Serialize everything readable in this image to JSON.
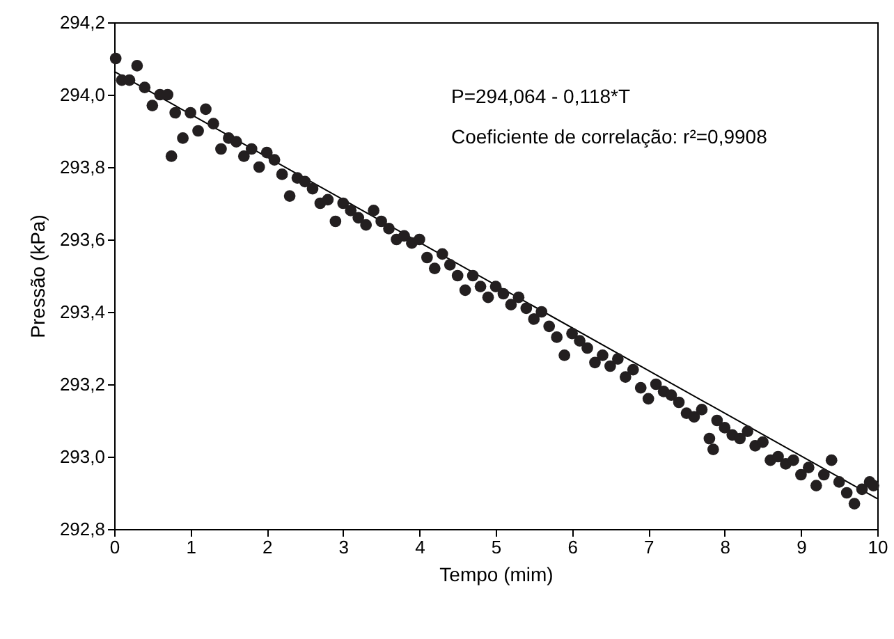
{
  "chart_data": {
    "type": "scatter",
    "xlabel": "Tempo (mim)",
    "ylabel": "Pressão (kPa)",
    "annotations": [
      "P=294,064 - 0,118*T",
      "Coeficiente de correlação: r²=0,9908"
    ],
    "xlim": [
      0,
      10
    ],
    "xticks": [
      0,
      1,
      2,
      3,
      4,
      5,
      6,
      7,
      8,
      9,
      10
    ],
    "ylim": [
      292.8,
      294.2
    ],
    "yticks": [
      {
        "value": 292.8,
        "label": "292,8"
      },
      {
        "value": 293.0,
        "label": "293,0"
      },
      {
        "value": 293.2,
        "label": "293,2"
      },
      {
        "value": 293.4,
        "label": "293,4"
      },
      {
        "value": 293.6,
        "label": "293,6"
      },
      {
        "value": 293.8,
        "label": "293,8"
      },
      {
        "value": 294.0,
        "label": "294,0"
      },
      {
        "value": 294.2,
        "label": "294,2"
      }
    ],
    "grid": false,
    "series": [
      {
        "marker": "circle",
        "color": "#231f20",
        "x": [
          0.02,
          0.1,
          0.2,
          0.3,
          0.4,
          0.5,
          0.6,
          0.7,
          0.75,
          0.8,
          0.9,
          1.0,
          1.1,
          1.2,
          1.3,
          1.4,
          1.5,
          1.6,
          1.7,
          1.8,
          1.9,
          2.0,
          2.1,
          2.2,
          2.3,
          2.4,
          2.5,
          2.6,
          2.7,
          2.8,
          2.9,
          3.0,
          3.1,
          3.2,
          3.3,
          3.4,
          3.5,
          3.6,
          3.7,
          3.8,
          3.9,
          4.0,
          4.1,
          4.2,
          4.3,
          4.4,
          4.5,
          4.6,
          4.7,
          4.8,
          4.9,
          5.0,
          5.1,
          5.2,
          5.3,
          5.4,
          5.5,
          5.6,
          5.7,
          5.8,
          5.9,
          6.0,
          6.1,
          6.2,
          6.3,
          6.4,
          6.5,
          6.6,
          6.7,
          6.8,
          6.9,
          7.0,
          7.1,
          7.2,
          7.3,
          7.4,
          7.5,
          7.6,
          7.7,
          7.8,
          7.85,
          7.9,
          8.0,
          8.1,
          8.2,
          8.3,
          8.4,
          8.5,
          8.6,
          8.7,
          8.8,
          8.9,
          9.0,
          9.1,
          9.2,
          9.3,
          9.4,
          9.5,
          9.6,
          9.7,
          9.8,
          9.9,
          9.95
        ],
        "values": [
          294.1,
          294.04,
          294.04,
          294.08,
          294.02,
          293.97,
          294.0,
          294.0,
          293.83,
          293.95,
          293.88,
          293.95,
          293.9,
          293.96,
          293.92,
          293.85,
          293.88,
          293.87,
          293.83,
          293.85,
          293.8,
          293.84,
          293.82,
          293.78,
          293.72,
          293.77,
          293.76,
          293.74,
          293.7,
          293.71,
          293.65,
          293.7,
          293.68,
          293.66,
          293.64,
          293.68,
          293.65,
          293.63,
          293.6,
          293.61,
          293.59,
          293.6,
          293.55,
          293.52,
          293.56,
          293.53,
          293.5,
          293.46,
          293.5,
          293.47,
          293.44,
          293.47,
          293.45,
          293.42,
          293.44,
          293.41,
          293.38,
          293.4,
          293.36,
          293.33,
          293.28,
          293.34,
          293.32,
          293.3,
          293.26,
          293.28,
          293.25,
          293.27,
          293.22,
          293.24,
          293.19,
          293.16,
          293.2,
          293.18,
          293.17,
          293.15,
          293.12,
          293.11,
          293.13,
          293.05,
          293.02,
          293.1,
          293.08,
          293.06,
          293.05,
          293.07,
          293.03,
          293.04,
          292.99,
          293.0,
          292.98,
          292.99,
          292.95,
          292.97,
          292.92,
          292.95,
          292.99,
          292.93,
          292.9,
          292.87,
          292.91,
          292.93,
          292.92
        ]
      },
      {
        "type": "line",
        "color": "#000000",
        "x": [
          0,
          10
        ],
        "values": [
          294.064,
          292.884
        ]
      }
    ]
  }
}
